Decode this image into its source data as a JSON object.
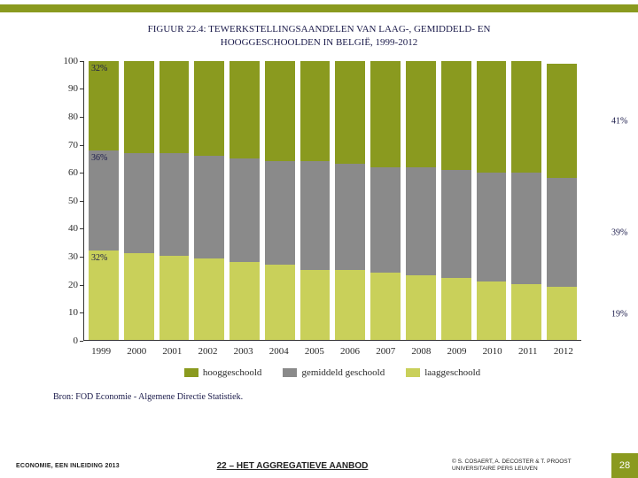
{
  "title_line1": "FIGUUR 22.4: TEWERKSTELLINGSAANDELEN VAN LAAG-, GEMIDDELD- EN",
  "title_line2": "HOOGGESCHOOLDEN IN BELGIË, 1999-2012",
  "chart": {
    "type": "stacked-bar",
    "ylim_max": 100,
    "ytick_step": 10,
    "yticks": [
      0,
      10,
      20,
      30,
      40,
      50,
      60,
      70,
      80,
      90,
      100
    ],
    "colors": {
      "hoog": "#8a9a1f",
      "gemiddeld": "#8a8a8a",
      "laag": "#c9d05a",
      "axis": "#333333",
      "text": "#1a1a4a",
      "bg": "#ffffff"
    },
    "categories": [
      "1999",
      "2000",
      "2001",
      "2002",
      "2003",
      "2004",
      "2005",
      "2006",
      "2007",
      "2008",
      "2009",
      "2010",
      "2011",
      "2012"
    ],
    "series": {
      "laag": [
        32,
        31,
        30,
        29,
        28,
        27,
        25,
        25,
        24,
        23,
        22,
        21,
        20,
        19
      ],
      "gemiddeld": [
        36,
        36,
        37,
        37,
        37,
        37,
        39,
        38,
        38,
        39,
        39,
        39,
        40,
        39
      ],
      "hoog": [
        32,
        33,
        33,
        34,
        35,
        36,
        36,
        37,
        38,
        38,
        39,
        40,
        40,
        41
      ]
    },
    "first_labels": {
      "hoog": "32%",
      "gemiddeld": "36%",
      "laag": "32%"
    },
    "last_labels": {
      "hoog": "41%",
      "gemiddeld": "39%",
      "laag": "19%"
    },
    "legend": [
      {
        "key": "hoog",
        "label": "hooggeschoold"
      },
      {
        "key": "gemiddeld",
        "label": "gemiddeld geschoold"
      },
      {
        "key": "laag",
        "label": "laaggeschoold"
      }
    ]
  },
  "source": "Bron: FOD Economie - Algemene Directie Statistiek.",
  "footer": {
    "left": "ECONOMIE, EEN INLEIDING 2013",
    "center": "22 – HET AGGREGATIEVE AANBOD",
    "right_line1": "© S. COSAERT, A. DECOSTER & T. PROOST",
    "right_line2": "UNIVERSITAIRE PERS LEUVEN",
    "page": "28"
  }
}
